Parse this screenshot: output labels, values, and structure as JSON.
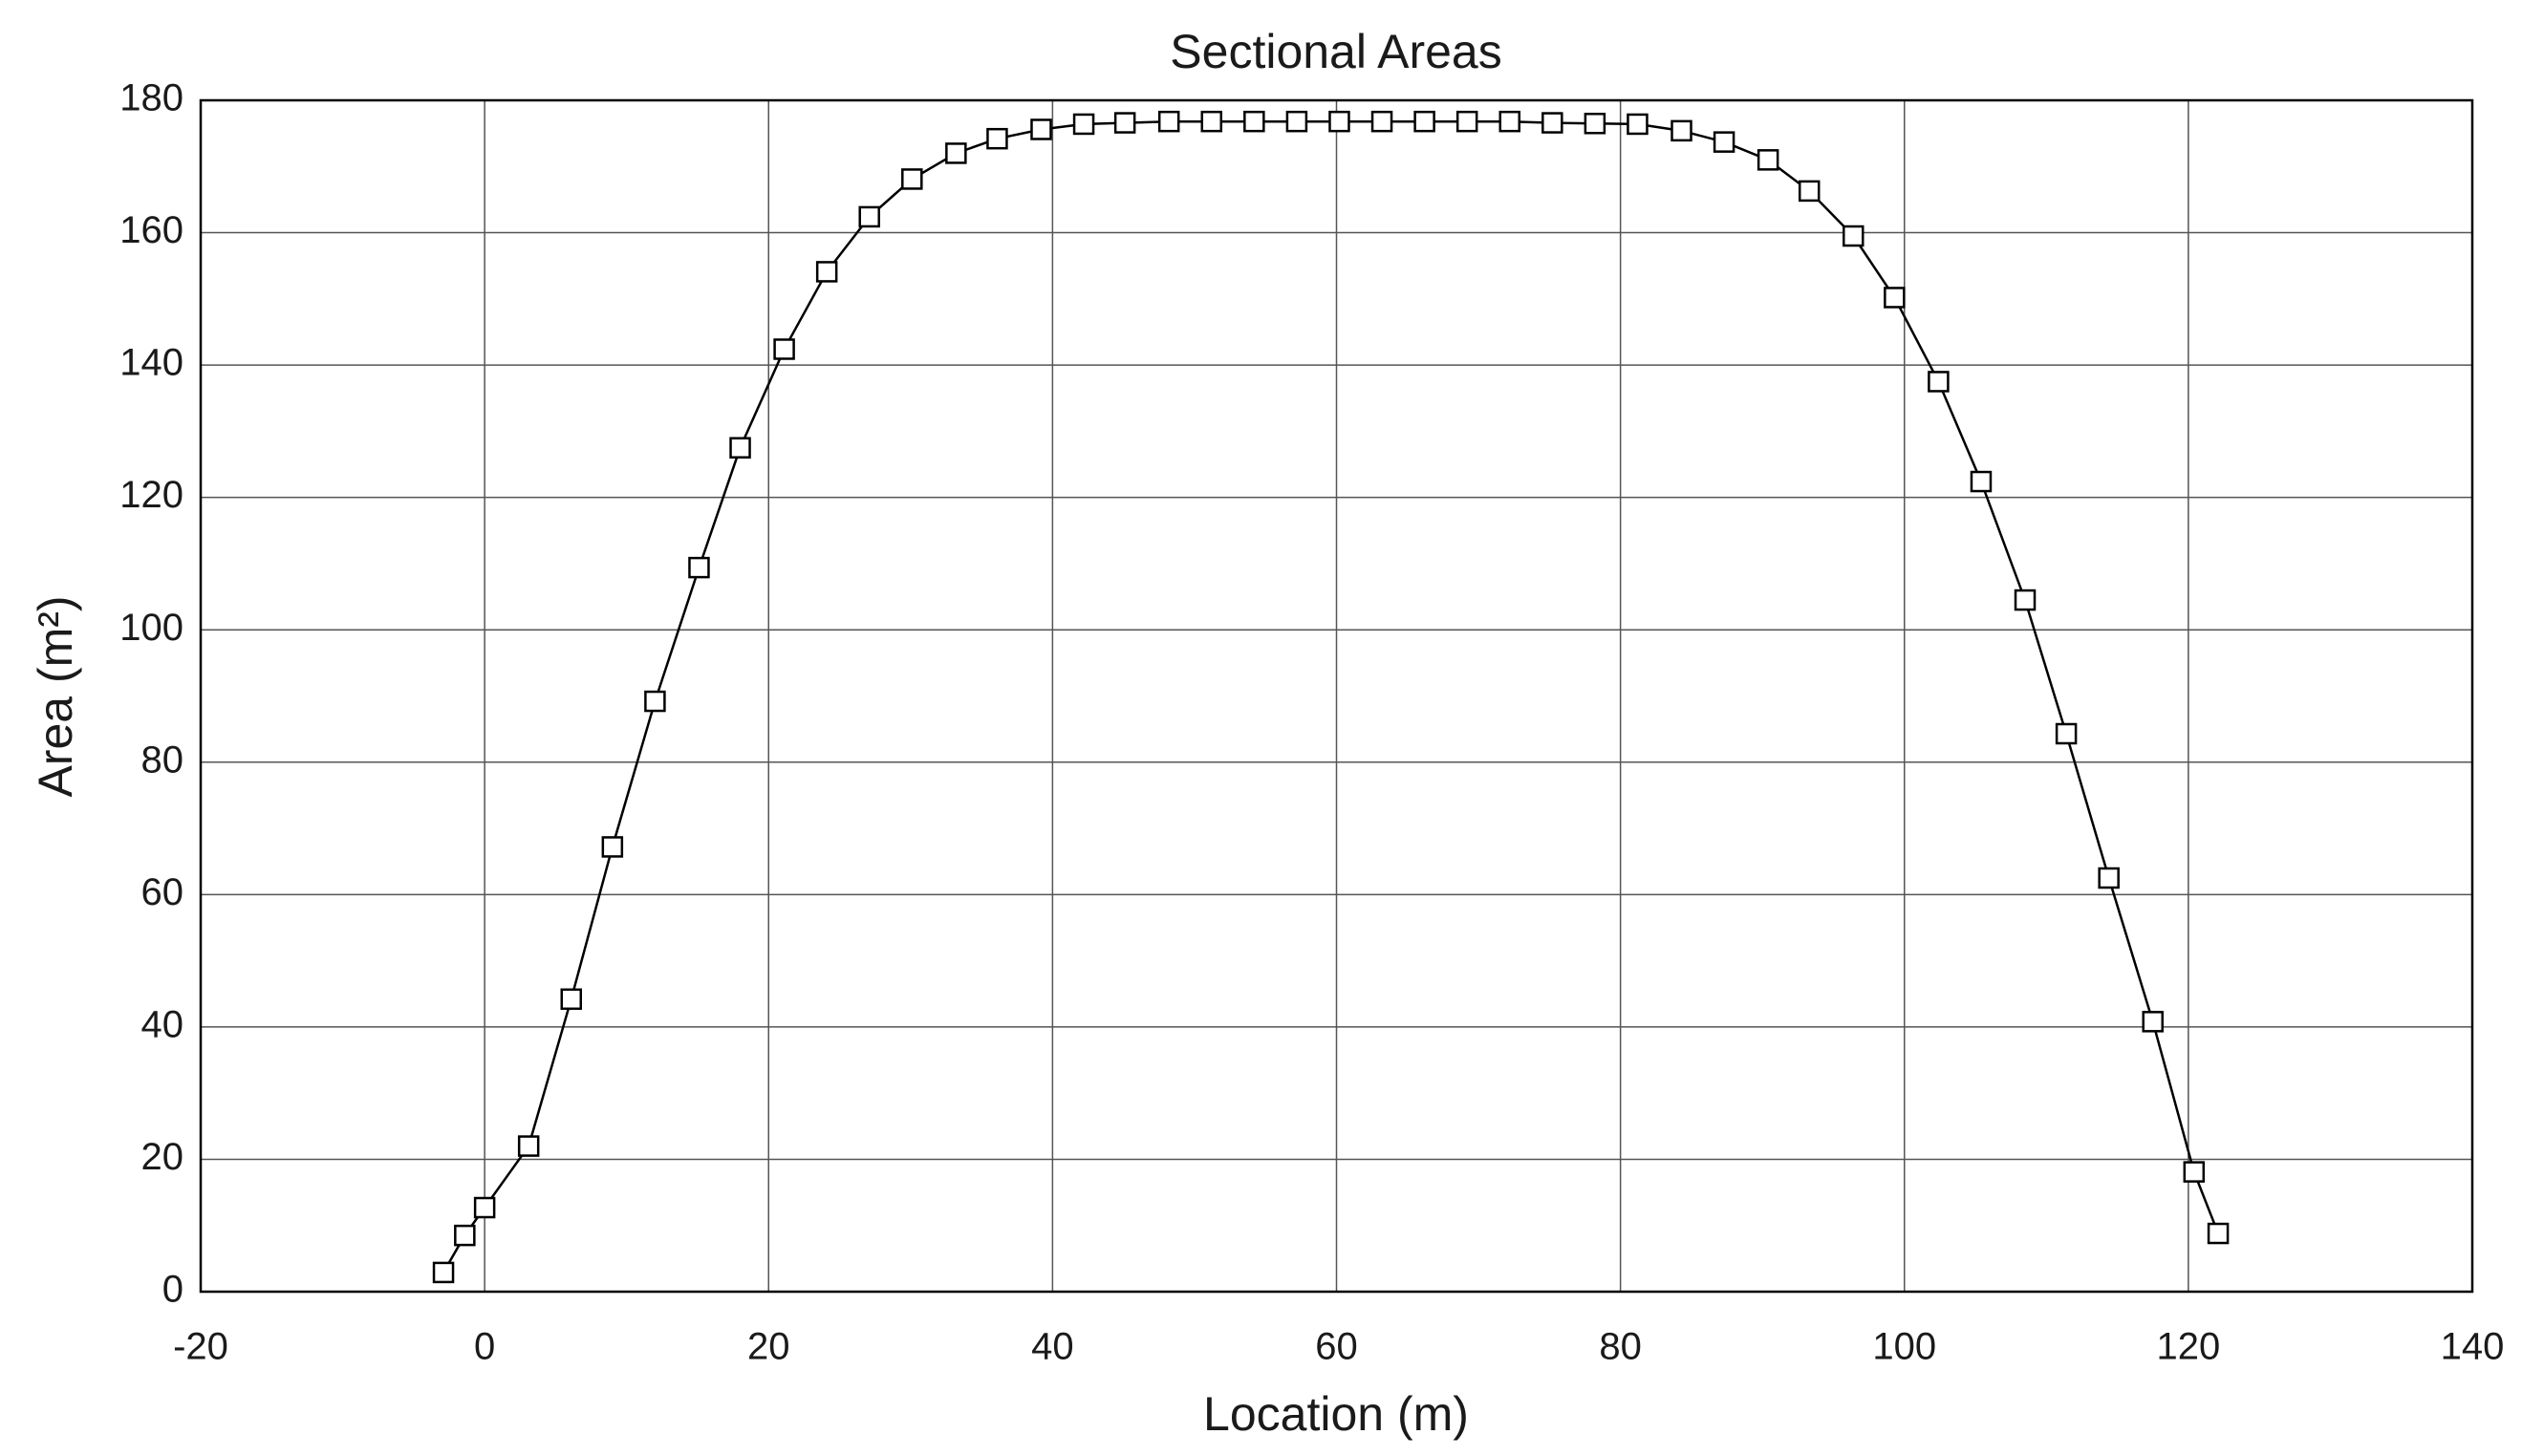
{
  "chart_data": {
    "type": "line",
    "title": "Sectional Areas",
    "xlabel": "Location (m)",
    "ylabel": "Area (m²)",
    "x": [
      -2.9,
      -1.4,
      0.0,
      3.1,
      6.1,
      9.0,
      12.0,
      15.1,
      18.0,
      21.1,
      24.1,
      27.1,
      30.1,
      33.2,
      36.1,
      39.2,
      42.2,
      45.1,
      48.2,
      51.2,
      54.2,
      57.2,
      60.2,
      63.2,
      66.2,
      69.2,
      72.2,
      75.2,
      78.2,
      81.2,
      84.3,
      87.3,
      90.4,
      93.3,
      96.4,
      99.3,
      102.4,
      105.4,
      108.5,
      111.4,
      114.4,
      117.5,
      120.4,
      122.1
    ],
    "values": [
      2.9,
      8.5,
      12.7,
      22,
      44.2,
      67.2,
      89.2,
      109.4,
      127.5,
      142.4,
      154.1,
      162.4,
      168.1,
      172,
      174.2,
      175.6,
      176.4,
      176.6,
      176.8,
      176.8,
      176.8,
      176.8,
      176.8,
      176.8,
      176.8,
      176.8,
      176.8,
      176.6,
      176.5,
      176.4,
      175.4,
      173.7,
      171,
      166.3,
      159.5,
      150.2,
      137.5,
      122.4,
      104.5,
      84.3,
      62.5,
      40.8,
      18.1,
      8.8
    ],
    "color": "#000000",
    "marker": "square",
    "xlim": [
      -20,
      140
    ],
    "xticks": [
      -20,
      0,
      20,
      40,
      60,
      80,
      100,
      120,
      140
    ],
    "ylim": [
      0,
      180
    ],
    "yticks": [
      0,
      20,
      40,
      60,
      80,
      100,
      120,
      140,
      160,
      180
    ],
    "grid": true
  }
}
